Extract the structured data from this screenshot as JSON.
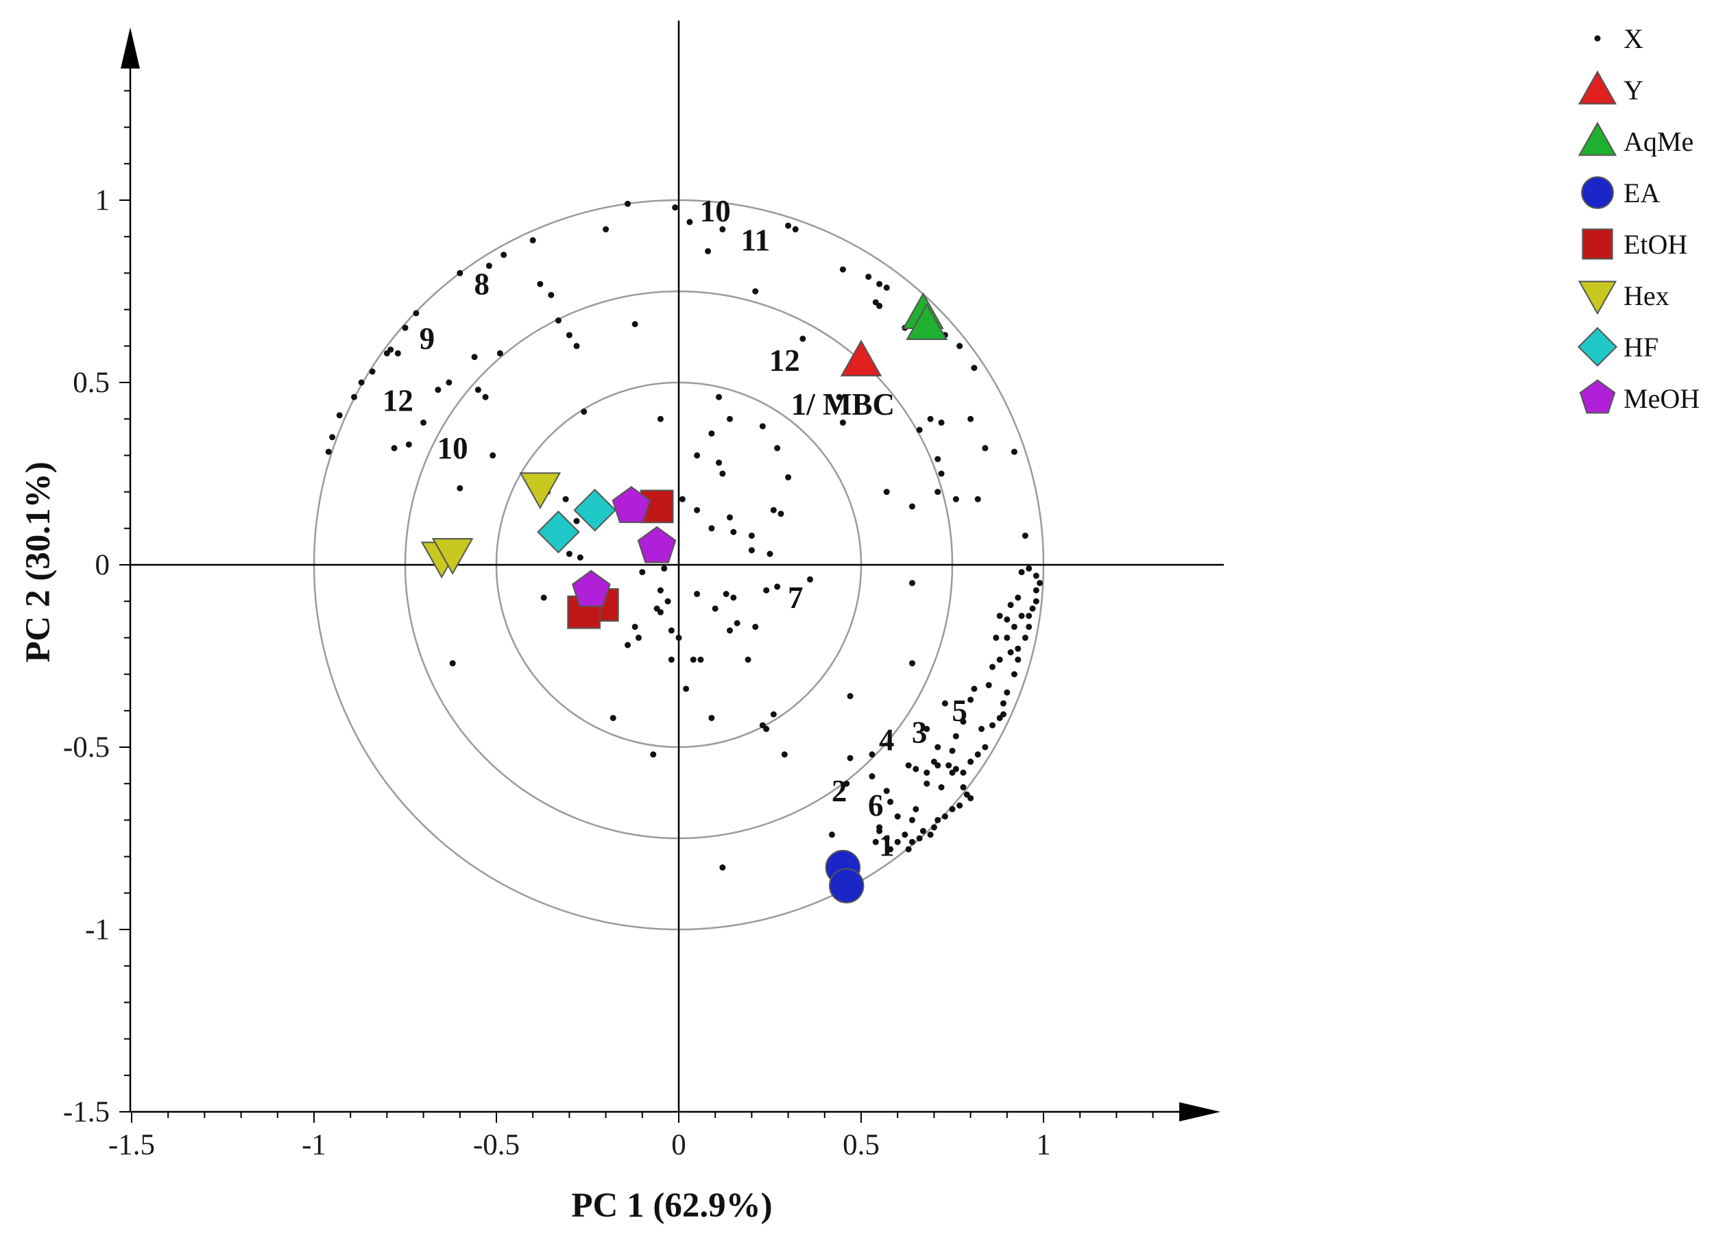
{
  "chart_data": {
    "type": "scatter",
    "title": "",
    "xlabel": "PC 1 (62.9%)",
    "ylabel": "PC 2 (30.1%)",
    "xlim": [
      -1.5,
      1.5
    ],
    "ylim": [
      -1.5,
      1.5
    ],
    "x_ticks": [
      -1.5,
      -1,
      -0.5,
      0,
      0.5,
      1
    ],
    "x_tick_labels": [
      "-1.5",
      "-1",
      "-0.5",
      "0",
      "0.5",
      "1"
    ],
    "y_ticks": [
      -1.5,
      -1,
      -0.5,
      0,
      0.5,
      1
    ],
    "y_tick_labels": [
      "-1.5",
      "-1",
      "-0.5",
      "0",
      "0.5",
      "1"
    ],
    "grid": false,
    "reference_circles_radius": [
      0.5,
      0.75,
      1.0
    ],
    "legend_position": "top-right",
    "series": [
      {
        "name": "X",
        "marker": "dot",
        "color": "#111111",
        "points": [
          [
            -0.14,
            0.99
          ],
          [
            -0.2,
            0.92
          ],
          [
            -0.4,
            0.89
          ],
          [
            -0.48,
            0.85
          ],
          [
            -0.52,
            0.82
          ],
          [
            -0.6,
            0.8
          ],
          [
            -0.72,
            0.69
          ],
          [
            -0.75,
            0.65
          ],
          [
            -0.79,
            0.59
          ],
          [
            -0.8,
            0.58
          ],
          [
            -0.84,
            0.53
          ],
          [
            -0.87,
            0.5
          ],
          [
            -0.89,
            0.46
          ],
          [
            -0.93,
            0.41
          ],
          [
            -0.95,
            0.35
          ],
          [
            -0.96,
            0.31
          ],
          [
            -0.77,
            0.58
          ],
          [
            -0.63,
            0.5
          ],
          [
            -0.55,
            0.48
          ],
          [
            -0.53,
            0.46
          ],
          [
            -0.78,
            0.32
          ],
          [
            -0.74,
            0.33
          ],
          [
            -0.7,
            0.39
          ],
          [
            -0.51,
            0.3
          ],
          [
            -0.6,
            0.21
          ],
          [
            -0.38,
            0.77
          ],
          [
            -0.35,
            0.74
          ],
          [
            -0.33,
            0.67
          ],
          [
            -0.28,
            0.6
          ],
          [
            -0.3,
            0.63
          ],
          [
            -0.12,
            0.66
          ],
          [
            -0.01,
            0.98
          ],
          [
            0.03,
            0.94
          ],
          [
            0.08,
            0.86
          ],
          [
            0.12,
            0.92
          ],
          [
            0.3,
            0.93
          ],
          [
            0.32,
            0.92
          ],
          [
            0.21,
            0.75
          ],
          [
            0.34,
            0.62
          ],
          [
            0.45,
            0.81
          ],
          [
            0.52,
            0.79
          ],
          [
            0.55,
            0.77
          ],
          [
            0.57,
            0.76
          ],
          [
            0.54,
            0.72
          ],
          [
            0.55,
            0.71
          ],
          [
            0.62,
            0.65
          ],
          [
            0.73,
            0.63
          ],
          [
            0.77,
            0.6
          ],
          [
            0.81,
            0.54
          ],
          [
            0.69,
            0.4
          ],
          [
            0.72,
            0.39
          ],
          [
            0.66,
            0.37
          ],
          [
            0.8,
            0.4
          ],
          [
            0.84,
            0.32
          ],
          [
            0.92,
            0.31
          ],
          [
            0.95,
            0.08
          ],
          [
            0.71,
            0.29
          ],
          [
            0.72,
            0.25
          ],
          [
            0.71,
            0.2
          ],
          [
            0.76,
            0.18
          ],
          [
            0.82,
            0.18
          ],
          [
            0.64,
            0.16
          ],
          [
            0.57,
            0.2
          ],
          [
            0.44,
            0.46
          ],
          [
            0.45,
            0.39
          ],
          [
            0.11,
            0.46
          ],
          [
            0.14,
            0.4
          ],
          [
            0.23,
            0.38
          ],
          [
            0.09,
            0.36
          ],
          [
            -0.05,
            0.4
          ],
          [
            -0.26,
            0.42
          ],
          [
            0.05,
            0.3
          ],
          [
            0.11,
            0.28
          ],
          [
            0.12,
            0.25
          ],
          [
            0.27,
            0.32
          ],
          [
            0.3,
            0.24
          ],
          [
            0.26,
            0.15
          ],
          [
            0.28,
            0.14
          ],
          [
            0.14,
            0.13
          ],
          [
            0.15,
            0.09
          ],
          [
            0.2,
            0.08
          ],
          [
            0.2,
            0.04
          ],
          [
            0.25,
            0.03
          ],
          [
            0.01,
            0.18
          ],
          [
            -0.03,
            0.14
          ],
          [
            0.05,
            0.15
          ],
          [
            0.09,
            0.1
          ],
          [
            -0.36,
            0.2
          ],
          [
            -0.31,
            0.18
          ],
          [
            -0.28,
            0.12
          ],
          [
            -0.32,
            0.1
          ],
          [
            -0.34,
            0.06
          ],
          [
            -0.3,
            0.03
          ],
          [
            -0.27,
            0.02
          ],
          [
            -0.08,
            0.04
          ],
          [
            -0.04,
            0.06
          ],
          [
            -0.04,
            -0.01
          ],
          [
            -0.1,
            -0.02
          ],
          [
            -0.05,
            -0.07
          ],
          [
            -0.03,
            -0.1
          ],
          [
            -0.05,
            -0.13
          ],
          [
            -0.02,
            -0.18
          ],
          [
            0.0,
            -0.2
          ],
          [
            -0.12,
            -0.17
          ],
          [
            -0.06,
            -0.12
          ],
          [
            -0.11,
            -0.2
          ],
          [
            -0.14,
            -0.22
          ],
          [
            -0.02,
            -0.26
          ],
          [
            0.04,
            -0.26
          ],
          [
            0.06,
            -0.26
          ],
          [
            0.02,
            -0.34
          ],
          [
            0.05,
            -0.08
          ],
          [
            0.13,
            -0.08
          ],
          [
            0.15,
            -0.09
          ],
          [
            0.1,
            -0.12
          ],
          [
            0.16,
            -0.16
          ],
          [
            0.14,
            -0.18
          ],
          [
            0.21,
            -0.17
          ],
          [
            0.24,
            -0.07
          ],
          [
            0.27,
            -0.06
          ],
          [
            0.09,
            -0.42
          ],
          [
            0.23,
            -0.44
          ],
          [
            0.24,
            -0.45
          ],
          [
            0.26,
            -0.41
          ],
          [
            0.29,
            -0.52
          ],
          [
            0.46,
            -0.6
          ],
          [
            0.47,
            -0.53
          ],
          [
            0.53,
            -0.52
          ],
          [
            0.53,
            -0.58
          ],
          [
            0.58,
            -0.65
          ],
          [
            0.6,
            -0.69
          ],
          [
            0.57,
            -0.62
          ],
          [
            0.55,
            -0.72
          ],
          [
            0.57,
            -0.75
          ],
          [
            0.64,
            -0.7
          ],
          [
            0.65,
            -0.67
          ],
          [
            0.68,
            -0.6
          ],
          [
            0.68,
            -0.57
          ],
          [
            0.7,
            -0.54
          ],
          [
            0.71,
            -0.55
          ],
          [
            0.72,
            -0.61
          ],
          [
            0.74,
            -0.55
          ],
          [
            0.75,
            -0.57
          ],
          [
            0.76,
            -0.56
          ],
          [
            0.78,
            -0.57
          ],
          [
            0.8,
            -0.54
          ],
          [
            0.82,
            -0.52
          ],
          [
            0.84,
            -0.5
          ],
          [
            0.86,
            -0.44
          ],
          [
            0.88,
            -0.42
          ],
          [
            0.89,
            -0.41
          ],
          [
            0.89,
            -0.38
          ],
          [
            0.9,
            -0.35
          ],
          [
            0.92,
            -0.3
          ],
          [
            0.93,
            -0.26
          ],
          [
            0.93,
            -0.23
          ],
          [
            0.95,
            -0.2
          ],
          [
            0.96,
            -0.17
          ],
          [
            0.96,
            -0.14
          ],
          [
            0.97,
            -0.12
          ],
          [
            0.98,
            -0.1
          ],
          [
            0.98,
            -0.07
          ],
          [
            0.99,
            -0.05
          ],
          [
            0.98,
            -0.03
          ],
          [
            0.96,
            -0.01
          ],
          [
            0.94,
            -0.02
          ],
          [
            0.93,
            -0.09
          ],
          [
            0.91,
            -0.11
          ],
          [
            0.9,
            -0.15
          ],
          [
            0.88,
            -0.14
          ],
          [
            0.87,
            -0.2
          ],
          [
            0.9,
            -0.2
          ],
          [
            0.92,
            -0.17
          ],
          [
            0.94,
            -0.14
          ],
          [
            0.91,
            -0.24
          ],
          [
            0.86,
            -0.28
          ],
          [
            0.88,
            -0.26
          ],
          [
            0.85,
            -0.33
          ],
          [
            0.81,
            -0.34
          ],
          [
            0.8,
            -0.37
          ],
          [
            0.75,
            -0.51
          ],
          [
            0.78,
            -0.61
          ],
          [
            0.79,
            -0.63
          ],
          [
            0.8,
            -0.64
          ],
          [
            0.77,
            -0.66
          ],
          [
            0.75,
            -0.67
          ],
          [
            0.73,
            -0.69
          ],
          [
            0.71,
            -0.7
          ],
          [
            0.7,
            -0.72
          ],
          [
            0.69,
            -0.74
          ],
          [
            0.67,
            -0.73
          ],
          [
            0.66,
            -0.75
          ],
          [
            0.64,
            -0.76
          ],
          [
            0.63,
            -0.78
          ],
          [
            0.62,
            -0.74
          ],
          [
            0.6,
            -0.76
          ],
          [
            0.58,
            -0.78
          ],
          [
            0.55,
            -0.73
          ],
          [
            0.54,
            -0.76
          ],
          [
            0.65,
            -0.56
          ],
          [
            0.63,
            -0.55
          ],
          [
            0.73,
            -0.38
          ],
          [
            0.78,
            -0.43
          ],
          [
            0.68,
            -0.45
          ],
          [
            0.64,
            -0.27
          ],
          [
            0.64,
            -0.05
          ],
          [
            0.47,
            -0.36
          ],
          [
            0.42,
            -0.74
          ],
          [
            0.12,
            -0.83
          ],
          [
            0.36,
            -0.04
          ],
          [
            0.71,
            -0.5
          ],
          [
            0.83,
            -0.45
          ],
          [
            0.76,
            -0.47
          ],
          [
            0.19,
            -0.26
          ],
          [
            -0.07,
            -0.52
          ],
          [
            -0.18,
            -0.42
          ],
          [
            -0.62,
            -0.27
          ],
          [
            -0.37,
            -0.09
          ],
          [
            -0.49,
            0.58
          ],
          [
            -0.56,
            0.57
          ],
          [
            -0.66,
            0.48
          ]
        ]
      },
      {
        "name": "Y",
        "marker": "triangle-up",
        "color": "#e02020",
        "points": [
          [
            0.5,
            0.56
          ]
        ]
      },
      {
        "name": "AqMe",
        "marker": "triangle-up",
        "color": "#20b030",
        "points": [
          [
            0.67,
            0.69
          ],
          [
            0.68,
            0.66
          ]
        ]
      },
      {
        "name": "EA",
        "marker": "circle",
        "color": "#1a26c8",
        "points": [
          [
            0.45,
            -0.83
          ],
          [
            0.46,
            -0.88
          ]
        ]
      },
      {
        "name": "EtOH",
        "marker": "square",
        "color": "#c01818",
        "points": [
          [
            -0.06,
            0.16
          ],
          [
            -0.21,
            -0.11
          ],
          [
            -0.26,
            -0.13
          ]
        ]
      },
      {
        "name": "Hex",
        "marker": "triangle-down",
        "color": "#c8c820",
        "points": [
          [
            -0.38,
            0.21
          ],
          [
            -0.65,
            0.02
          ],
          [
            -0.62,
            0.03
          ]
        ]
      },
      {
        "name": "HF",
        "marker": "diamond",
        "color": "#20c8c8",
        "points": [
          [
            -0.23,
            0.15
          ],
          [
            -0.33,
            0.09
          ]
        ]
      },
      {
        "name": "MeOH",
        "marker": "pentagon",
        "color": "#b020d8",
        "points": [
          [
            -0.13,
            0.16
          ],
          [
            -0.06,
            0.05
          ],
          [
            -0.24,
            -0.07
          ]
        ]
      }
    ],
    "annotations": [
      {
        "text": "10",
        "x": 0.1,
        "y": 0.97
      },
      {
        "text": "11",
        "x": 0.21,
        "y": 0.89
      },
      {
        "text": "8",
        "x": -0.54,
        "y": 0.77
      },
      {
        "text": "9",
        "x": -0.69,
        "y": 0.62
      },
      {
        "text": "12",
        "x": -0.77,
        "y": 0.45
      },
      {
        "text": "10",
        "x": -0.62,
        "y": 0.32
      },
      {
        "text": "12",
        "x": 0.29,
        "y": 0.56
      },
      {
        "text": "1/ MBC",
        "x": 0.45,
        "y": 0.44
      },
      {
        "text": "7",
        "x": 0.32,
        "y": -0.09
      },
      {
        "text": "5",
        "x": 0.77,
        "y": -0.4
      },
      {
        "text": "3",
        "x": 0.66,
        "y": -0.46
      },
      {
        "text": "4",
        "x": 0.57,
        "y": -0.48
      },
      {
        "text": "2",
        "x": 0.44,
        "y": -0.62
      },
      {
        "text": "6",
        "x": 0.54,
        "y": -0.66
      },
      {
        "text": "1",
        "x": 0.57,
        "y": -0.77
      }
    ]
  }
}
